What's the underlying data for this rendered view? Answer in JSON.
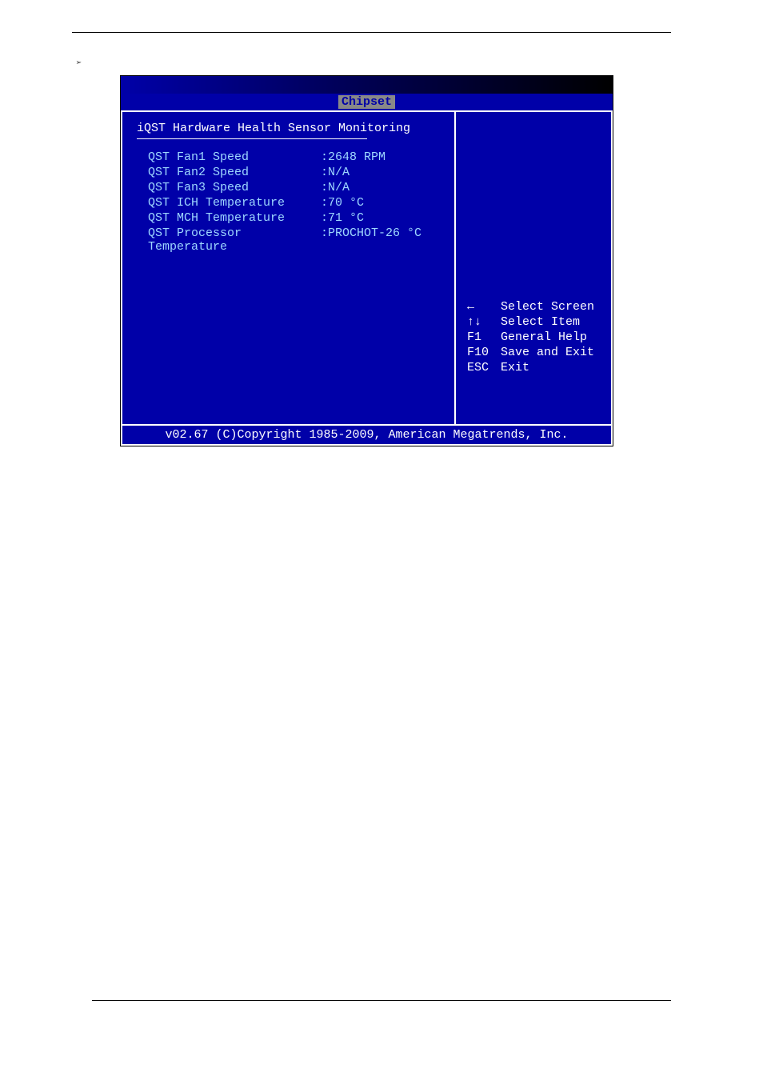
{
  "page": {
    "arrow_marker": "➢"
  },
  "bios": {
    "tab": "Chipset",
    "section_title": "iQST Hardware Health Sensor Monitoring",
    "sensors": [
      {
        "label": "QST Fan1 Speed",
        "value": ":2648 RPM"
      },
      {
        "label": "QST Fan2 Speed",
        "value": ":N/A"
      },
      {
        "label": "QST Fan3 Speed",
        "value": ":N/A"
      },
      {
        "label": "QST ICH Temperature",
        "value": ":70 °C"
      },
      {
        "label": "QST MCH Temperature",
        "value": ":71 °C"
      },
      {
        "label": "QST Processor Temperature",
        "value": ":PROCHOT-26 °C"
      }
    ],
    "help": [
      {
        "key": "←",
        "desc": "Select Screen"
      },
      {
        "key": "↑↓",
        "desc": "Select Item"
      },
      {
        "key": "F1",
        "desc": "General Help"
      },
      {
        "key": "F10",
        "desc": "Save and Exit"
      },
      {
        "key": "ESC",
        "desc": "Exit"
      }
    ],
    "footer": "v02.67 (C)Copyright 1985-2009, American Megatrends, Inc."
  },
  "colors": {
    "bios_bg": "#0000a8",
    "bios_text_white": "#ffffff",
    "bios_text_cyan": "#9ed7ff",
    "tab_bg": "#888888"
  }
}
